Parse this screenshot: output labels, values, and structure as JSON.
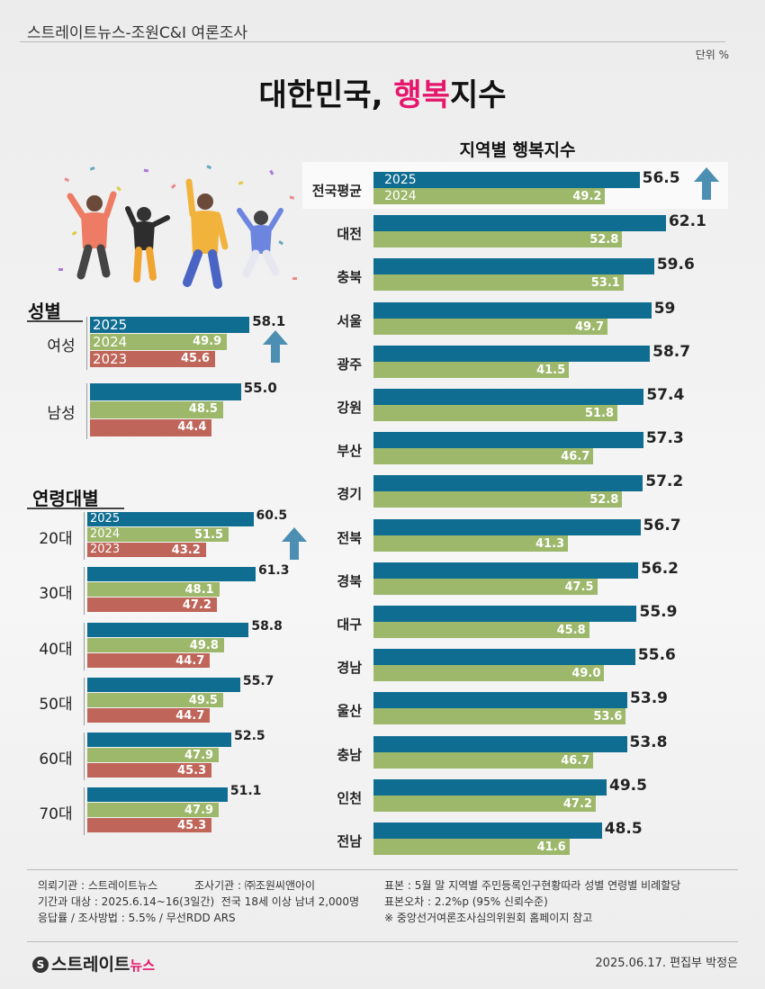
{
  "header": {
    "source": "스트레이트뉴스-조원C&I 여론조사",
    "unit": "단위 %"
  },
  "title": {
    "main": "대한민국, ",
    "accent": "행복",
    "rest": "지수"
  },
  "region_title": "지역별 행복지수",
  "gender_title": "성별",
  "age_title": "연령대별",
  "colors": {
    "y2025": "#0f6d92",
    "y2024": "#9db86b",
    "y2023": "#bf6559",
    "accent": "#e5166b",
    "arrow": "#4d8fb3"
  },
  "chart_data": [
    {
      "type": "bar",
      "orientation": "horizontal",
      "title": "지역별 행복지수",
      "categories": [
        "전국평균",
        "대전",
        "충북",
        "서울",
        "광주",
        "강원",
        "부산",
        "경기",
        "전북",
        "경북",
        "대구",
        "경남",
        "울산",
        "충남",
        "인천",
        "전남"
      ],
      "series": [
        {
          "name": "2025",
          "values": [
            56.5,
            62.1,
            59.6,
            59,
            58.7,
            57.4,
            57.3,
            57.2,
            56.7,
            56.2,
            55.9,
            55.6,
            53.9,
            53.8,
            49.5,
            48.5
          ]
        },
        {
          "name": "2024",
          "values": [
            49.2,
            52.8,
            53.1,
            49.7,
            41.5,
            51.8,
            46.7,
            52.8,
            41.3,
            47.5,
            45.8,
            49.0,
            53.6,
            46.7,
            47.2,
            41.6
          ]
        }
      ],
      "value_labels": {
        "2025": [
          "56.5",
          "62.1",
          "59.6",
          "59",
          "58.7",
          "57.4",
          "57.3",
          "57.2",
          "56.7",
          "56.2",
          "55.9",
          "55.6",
          "53.9",
          "53.8",
          "49.5",
          "48.5"
        ],
        "2024": [
          "49.2",
          "52.8",
          "53.1",
          "49.7",
          "41.5",
          "51.8",
          "46.7",
          "52.8",
          "41.3",
          "47.5",
          "45.8",
          "49.0",
          "53.6",
          "46.7",
          "47.2",
          "41.6"
        ]
      },
      "xlim": [
        0,
        64
      ]
    },
    {
      "type": "bar",
      "orientation": "horizontal",
      "title": "성별",
      "categories": [
        "여성",
        "남성"
      ],
      "series": [
        {
          "name": "2025",
          "values": [
            58.1,
            55.0
          ]
        },
        {
          "name": "2024",
          "values": [
            49.9,
            48.5
          ]
        },
        {
          "name": "2023",
          "values": [
            45.6,
            44.4
          ]
        }
      ],
      "value_labels": {
        "2025": [
          "58.1",
          "55.0"
        ],
        "2024": [
          "49.9",
          "48.5"
        ],
        "2023": [
          "45.6",
          "44.4"
        ]
      },
      "xlim": [
        0,
        64
      ]
    },
    {
      "type": "bar",
      "orientation": "horizontal",
      "title": "연령대별",
      "categories": [
        "20대",
        "30대",
        "40대",
        "50대",
        "60대",
        "70대"
      ],
      "series": [
        {
          "name": "2025",
          "values": [
            60.5,
            61.3,
            58.8,
            55.7,
            52.5,
            51.1
          ]
        },
        {
          "name": "2024",
          "values": [
            51.5,
            48.1,
            49.8,
            49.5,
            47.9,
            47.9
          ]
        },
        {
          "name": "2023",
          "values": [
            43.2,
            47.2,
            44.7,
            44.7,
            45.3,
            45.3
          ]
        }
      ],
      "value_labels": {
        "2025": [
          "60.5",
          "61.3",
          "58.8",
          "55.7",
          "52.5",
          "51.1"
        ],
        "2024": [
          "51.5",
          "48.1",
          "49.8",
          "49.5",
          "47.9",
          "47.9"
        ],
        "2023": [
          "43.2",
          "47.2",
          "44.7",
          "44.7",
          "45.3",
          "45.3"
        ]
      },
      "xlim": [
        0,
        64
      ]
    }
  ],
  "footer": {
    "client": "의뢰기관 : 스트레이트뉴스",
    "agency": "조사기관 : ㈜조원씨앤아이",
    "period": "기간과 대상 : 2025.6.14~16(3일간)  전국 18세 이상 남녀 2,000명",
    "method": "응답률 / 조사방법 : 5.5% / 무선RDD ARS",
    "sample": "표본 : 5월 말 지역별 주민등록인구현황따라 성별 연령별 비례할당",
    "error": "표본오차 : 2.2%p (95% 신뢰수준)",
    "note": "※ 중앙선거여론조사심의위원회 홈페이지 참고",
    "logo_text": "스트레이트",
    "logo_suffix": "뉴스",
    "date_credit": "2025.06.17. 편집부 박정은"
  }
}
